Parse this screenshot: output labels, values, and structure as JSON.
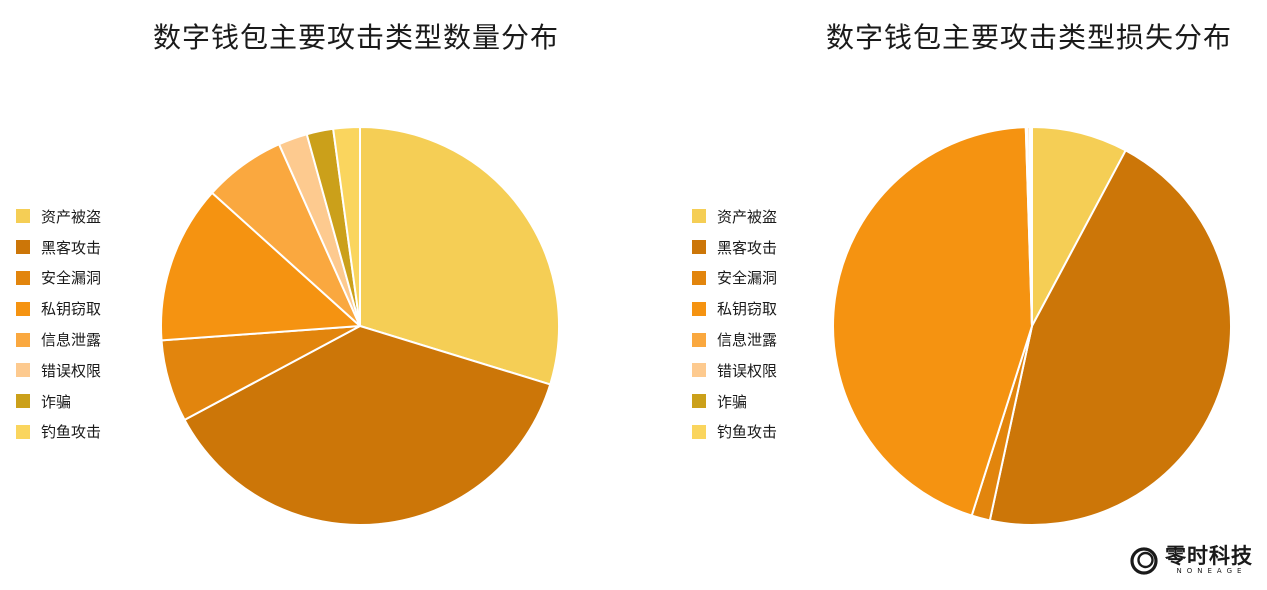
{
  "chart_data": [
    {
      "type": "pie",
      "title": "数字钱包主要攻击类型数量分布",
      "legend_position": "left",
      "start_angle_deg": 0,
      "direction": "clockwise",
      "slices": [
        {
          "label": "资产被盗",
          "value": 29.0,
          "color": "#F5CE55"
        },
        {
          "label": "黑客攻击",
          "value": 36.5,
          "color": "#CC7608"
        },
        {
          "label": "安全漏洞",
          "value": 6.5,
          "color": "#E2850D"
        },
        {
          "label": "私钥窃取",
          "value": 12.5,
          "color": "#F59311"
        },
        {
          "label": "信息泄露",
          "value": 6.5,
          "color": "#FAA83F"
        },
        {
          "label": "错误权限",
          "value": 2.3,
          "color": "#FDCA8F"
        },
        {
          "label": "诈骗",
          "value": 2.1,
          "color": "#CBA01A"
        },
        {
          "label": "钓鱼攻击",
          "value": 2.1,
          "color": "#FAD55E"
        }
      ]
    },
    {
      "type": "pie",
      "title": "数字钱包主要攻击类型损失分布",
      "legend_position": "left",
      "start_angle_deg": 0,
      "direction": "clockwise",
      "slices": [
        {
          "label": "资产被盗",
          "value": 7.8,
          "color": "#F5CE55"
        },
        {
          "label": "黑客攻击",
          "value": 45.6,
          "color": "#CC7608"
        },
        {
          "label": "安全漏洞",
          "value": 1.5,
          "color": "#E2850D"
        },
        {
          "label": "私钥窃取",
          "value": 44.6,
          "color": "#F59311"
        },
        {
          "label": "信息泄露",
          "value": 0.1,
          "color": "#FAA83F"
        },
        {
          "label": "错误权限",
          "value": 0.2,
          "color": "#FDCA8F"
        },
        {
          "label": "诈骗",
          "value": 0.1,
          "color": "#CBA01A"
        },
        {
          "label": "钓鱼攻击",
          "value": 0.1,
          "color": "#FAD55E"
        }
      ]
    }
  ],
  "logo": {
    "name_cn": "零时科技",
    "name_en": "NONEAGE",
    "icon": "noneage-ring-icon"
  }
}
